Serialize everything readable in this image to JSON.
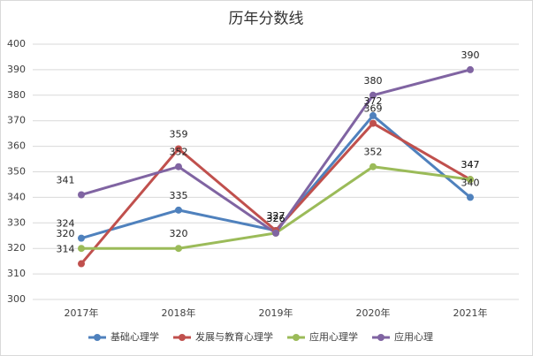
{
  "chart_data": {
    "type": "line",
    "title": "历年分数线",
    "categories": [
      "2017年",
      "2018年",
      "2019年",
      "2020年",
      "2021年"
    ],
    "series": [
      {
        "name": "基础心理学",
        "color": "#4f81bd",
        "values": [
          324,
          335,
          327,
          372,
          340
        ]
      },
      {
        "name": "发展与教育心理学",
        "color": "#c0504d",
        "values": [
          314,
          359,
          327,
          369,
          347
        ]
      },
      {
        "name": "应用心理学",
        "color": "#9bbb59",
        "values": [
          320,
          320,
          326,
          352,
          347
        ]
      },
      {
        "name": "应用心理",
        "color": "#8064a2",
        "values": [
          341,
          352,
          326,
          380,
          390
        ]
      }
    ],
    "ylim": [
      300,
      400
    ],
    "yticks": [
      300,
      310,
      320,
      330,
      340,
      350,
      360,
      370,
      380,
      390,
      400
    ],
    "grid": true
  }
}
